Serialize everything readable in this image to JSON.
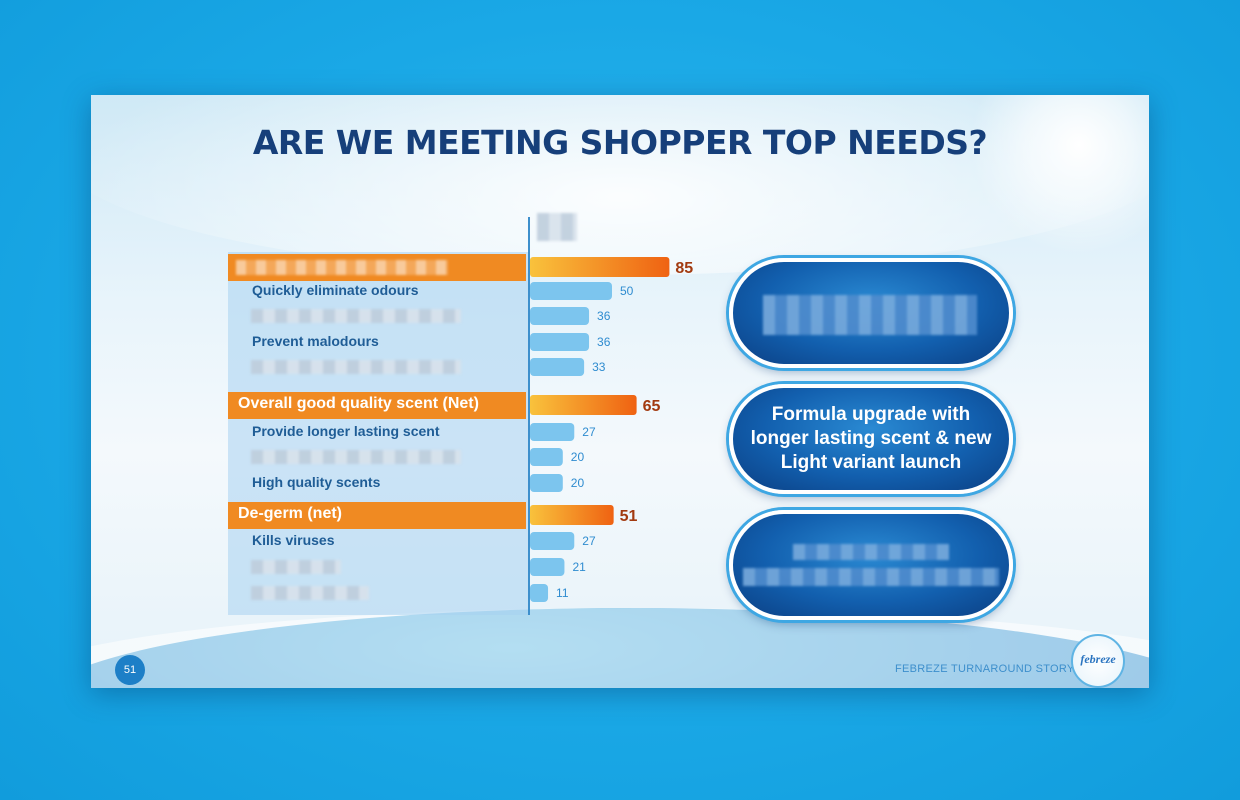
{
  "slide": {
    "title": "ARE WE MEETING SHOPPER TOP NEEDS?",
    "page_number": "51",
    "footer": "FEBREZE TURNAROUND STORY",
    "logo_text": "febreze"
  },
  "rows": [
    {
      "label": "",
      "value": 85,
      "net": true,
      "redacted": true
    },
    {
      "label": "Quickly eliminate odours",
      "value": 50,
      "net": false,
      "redacted": false
    },
    {
      "label": "",
      "value": 36,
      "net": false,
      "redacted": true
    },
    {
      "label": "Prevent malodours",
      "value": 36,
      "net": false,
      "redacted": false
    },
    {
      "label": "",
      "value": 33,
      "net": false,
      "redacted": true
    },
    {
      "label": "Overall good quality scent (Net)",
      "value": 65,
      "net": true,
      "redacted": false
    },
    {
      "label": "Provide longer lasting scent",
      "value": 27,
      "net": false,
      "redacted": false
    },
    {
      "label": "",
      "value": 20,
      "net": false,
      "redacted": true
    },
    {
      "label": "High quality scents",
      "value": 20,
      "net": false,
      "redacted": false
    },
    {
      "label": "De-germ (net)",
      "value": 51,
      "net": true,
      "redacted": false
    },
    {
      "label": "Kills viruses",
      "value": 27,
      "net": false,
      "redacted": false
    },
    {
      "label": "",
      "value": 21,
      "net": false,
      "redacted": true
    },
    {
      "label": "",
      "value": 11,
      "net": false,
      "redacted": true
    }
  ],
  "callouts": [
    {
      "text": "",
      "redacted": true
    },
    {
      "text": "Formula upgrade with longer lasting scent & new Light variant launch",
      "redacted": false
    },
    {
      "text": "",
      "redacted": true
    }
  ],
  "chart_data": {
    "type": "bar",
    "orientation": "horizontal",
    "title": "ARE WE MEETING SHOPPER TOP NEEDS?",
    "categories": [
      "",
      "Quickly eliminate odours",
      "",
      "Prevent malodours",
      "",
      "Overall good quality scent (Net)",
      "Provide longer lasting scent",
      "",
      "High quality scents",
      "De-germ (net)",
      "Kills viruses",
      "",
      ""
    ],
    "values": [
      85,
      50,
      36,
      36,
      33,
      65,
      27,
      20,
      20,
      51,
      27,
      21,
      11
    ],
    "xlim": [
      0,
      100
    ],
    "grid": false,
    "legend": "none",
    "colors": {
      "net_bar_start": "#f9c23c",
      "net_bar_end": "#ef6212",
      "sub_bar": "#7cc5ee",
      "net_label_bg": "#f08a22",
      "net_value_text": "#a23a10",
      "sub_value_text": "#2f8cd0"
    }
  }
}
